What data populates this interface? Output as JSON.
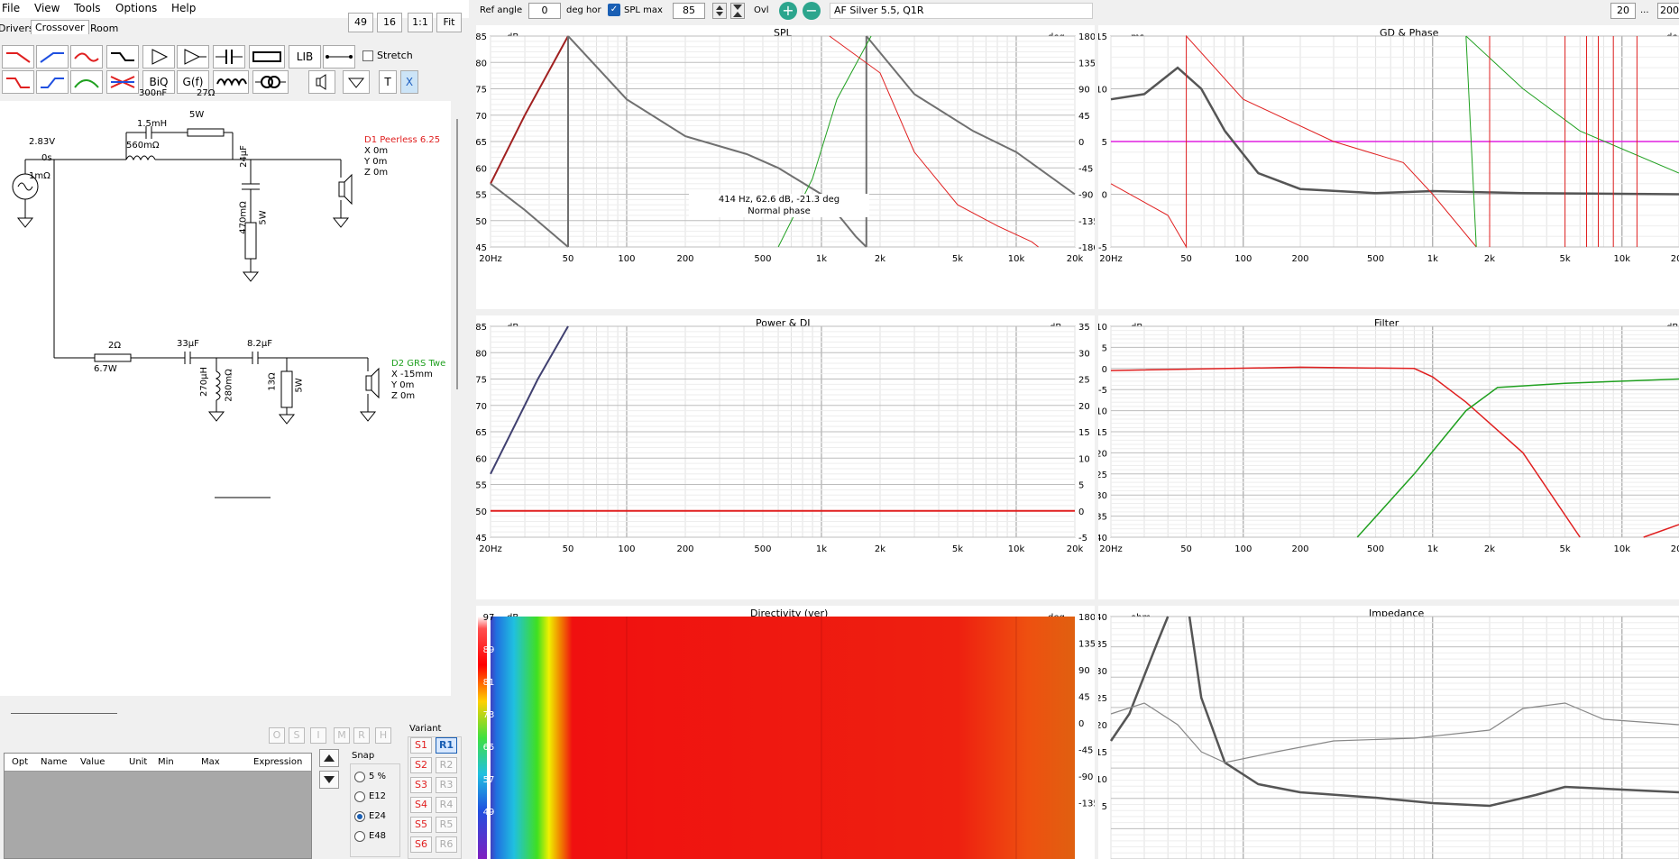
{
  "menu": [
    "File",
    "View",
    "Tools",
    "Options",
    "Help"
  ],
  "tabs": [
    "Drivers",
    "Crossover",
    "Room"
  ],
  "zoom": {
    "a": "49",
    "b": "16",
    "c": "1:1",
    "d": "Fit"
  },
  "toolbox": {
    "lib": "LIB",
    "stretch": "Stretch",
    "biq": "BiQ",
    "gf": "G(f)",
    "t": "T",
    "x": "X"
  },
  "top": {
    "ref_angle_label": "Ref angle",
    "ref_angle": "0",
    "deg_hor": "deg hor",
    "spl_max_label": "SPL max",
    "spl_max": "85",
    "ovl": "Ovl",
    "project": "AF Silver 5.5, Q1R",
    "right_val": "20",
    "dots": "...",
    "right_val2": "200"
  },
  "schematic": {
    "src": "2.83V",
    "src_t": "0s",
    "src_r": "1mΩ",
    "c1": "300nF",
    "r1": "27Ω",
    "r1w": "5W",
    "l1": "1.5mH",
    "l1r": "560mΩ",
    "c2": "24µF",
    "r2": "470mΩ",
    "r2w": "5W",
    "d1": "D1 Peerless 6.25",
    "d1x": "X 0m",
    "d1y": "Y 0m",
    "d1z": "Z 0m",
    "r3": "2Ω",
    "r3w": "6.7W",
    "c3": "33µF",
    "c4": "8.2µF",
    "l2": "270µH",
    "l2r": "280mΩ",
    "r4": "13Ω",
    "r4w": "5W",
    "d2": "D2 GRS Twe",
    "d2x": "X -15mm",
    "d2y": "Y 0m",
    "d2z": "Z 0m"
  },
  "opt_letters": [
    "O",
    "S",
    "I",
    "M",
    "R",
    "H"
  ],
  "table_headers": [
    "Opt",
    "Name",
    "Value",
    "Unit",
    "Min",
    "Max",
    "Expression"
  ],
  "snap": {
    "title": "Snap",
    "options": [
      "5 %",
      "E12",
      "E24",
      "E48"
    ],
    "selected": "E24"
  },
  "variant": {
    "title": "Variant",
    "s": [
      "S1",
      "S2",
      "S3",
      "S4",
      "S5",
      "S6"
    ],
    "r": [
      "R1",
      "R2",
      "R3",
      "R4",
      "R5",
      "R6"
    ]
  },
  "xticks": [
    "20Hz",
    "50",
    "100",
    "200",
    "500",
    "1k",
    "2k",
    "5k",
    "10k",
    "20k"
  ],
  "spl": {
    "title": "SPL",
    "yunit": "dB",
    "runit": "deg",
    "yticks": [
      "85",
      "80",
      "75",
      "70",
      "65",
      "60",
      "55",
      "50",
      "45"
    ],
    "rticks": [
      "180",
      "135",
      "90",
      "45",
      "0",
      "-45",
      "-90",
      "-135",
      "-180"
    ],
    "tip1": "414 Hz, 62.6 dB, -21.3 deg",
    "tip2": "Normal phase"
  },
  "gd": {
    "title": "GD & Phase",
    "yunit": "ms",
    "runit": "de",
    "yticks": [
      "15",
      "10",
      "5",
      "0",
      "-5"
    ]
  },
  "power": {
    "title": "Power & DI",
    "yunit": "dB",
    "runit": "dB",
    "yticks": [
      "85",
      "80",
      "75",
      "70",
      "65",
      "60",
      "55",
      "50",
      "45"
    ],
    "rticks": [
      "35",
      "30",
      "25",
      "20",
      "15",
      "10",
      "5",
      "0",
      "-5"
    ]
  },
  "filter": {
    "title": "Filter",
    "yunit": "dB",
    "runit": "dB",
    "yticks": [
      "10",
      "5",
      "0",
      "-5",
      "-10",
      "-15",
      "-20",
      "-25",
      "-30",
      "-35",
      "-40"
    ]
  },
  "dir": {
    "title": "Directivity (ver)",
    "yunit": "dB",
    "runit": "deg",
    "scale": [
      "97",
      "89",
      "81",
      "73",
      "65",
      "57",
      "49"
    ],
    "rticks": [
      "180",
      "135",
      "90",
      "45",
      "0",
      "-45",
      "-90",
      "-135"
    ]
  },
  "imp": {
    "title": "Impedance",
    "yunit": "ohm",
    "yticks": [
      "40",
      "35",
      "30",
      "25",
      "20",
      "15",
      "10",
      "5"
    ]
  },
  "colors": {
    "red": "#e02020",
    "green": "#20a020",
    "gray": "#707070",
    "magenta": "#e020e0",
    "navy": "#404070"
  }
}
